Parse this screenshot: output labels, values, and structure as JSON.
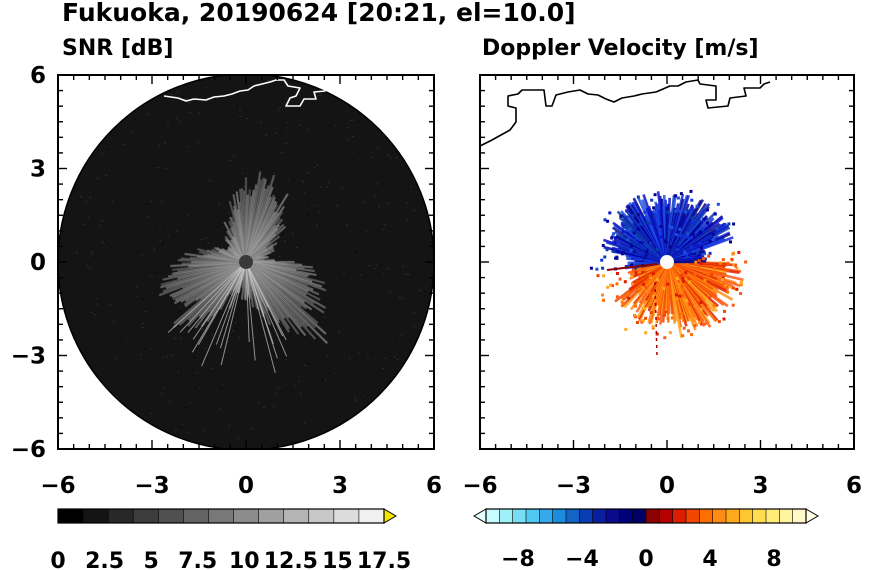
{
  "title": "Fukuoka, 20190624 [20:21, el=10.0]",
  "chart_data": [
    {
      "type": "heatmap",
      "title": "SNR [dB]",
      "xlim": [
        -6,
        6
      ],
      "ylim": [
        -6,
        6
      ],
      "x_ticks": [
        "−6",
        "−3",
        "0",
        "3",
        "6"
      ],
      "y_ticks": [
        "−6",
        "−3",
        "0",
        "3",
        "6"
      ],
      "radar_range": 6,
      "echo_radius_typical": 2.3,
      "colorbar": {
        "ticks": [
          "0",
          "2.5",
          "5",
          "7.5",
          "10",
          "12.5",
          "15",
          "17.5"
        ],
        "range": [
          0,
          17.5
        ],
        "colors": [
          "#000000",
          "#141414",
          "#282828",
          "#3c3c3c",
          "#505050",
          "#646464",
          "#787878",
          "#8c8c8c",
          "#a0a0a0",
          "#b4b4b4",
          "#c8c8c8",
          "#dcdcdc",
          "#f0f0f0"
        ],
        "over_color": "#f2e600"
      }
    },
    {
      "type": "heatmap",
      "title": "Doppler Velocity [m/s]",
      "xlim": [
        -6,
        6
      ],
      "ylim": [
        -6,
        6
      ],
      "x_ticks": [
        "−6",
        "−3",
        "0",
        "3",
        "6"
      ],
      "y_ticks": [],
      "echo_radius_typical": 2.1,
      "approaching_color": "#0a14c8",
      "receding_color": "#ff5a14",
      "colorbar": {
        "ticks": [
          "−8",
          "−4",
          "0",
          "4",
          "8"
        ],
        "range": [
          -10,
          10
        ],
        "colors": [
          "#c8fcff",
          "#a0f0fa",
          "#78dcf5",
          "#50c8f0",
          "#32aaeb",
          "#1e8cdc",
          "#1464c8",
          "#0a3cb4",
          "#0a1ea0",
          "#0a0a8c",
          "#000078",
          "#000064",
          "#8c0000",
          "#b40000",
          "#dc1e00",
          "#f04600",
          "#ff6e00",
          "#ff8c14",
          "#ffaa1e",
          "#ffc832",
          "#ffdc50",
          "#ffeb78",
          "#fff5a0",
          "#fffac8"
        ],
        "under_color": "#e6ffff",
        "over_color": "#fffde6"
      }
    }
  ]
}
